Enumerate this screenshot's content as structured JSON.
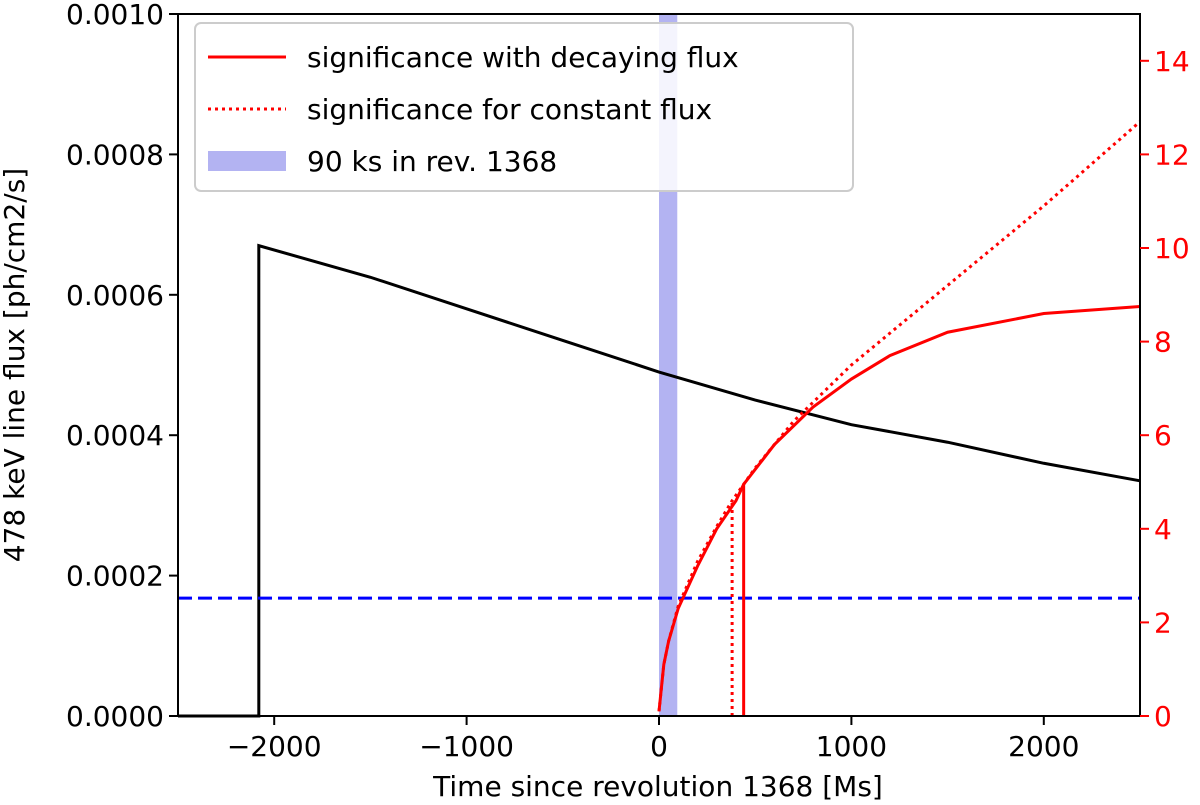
{
  "chart_data": {
    "type": "line",
    "xlabel": "Time since revolution 1368 [Ms]",
    "ylabel": "478 keV line flux [ph/cm2/s]",
    "xlim": [
      -2500,
      2500
    ],
    "ylim": [
      0,
      0.001
    ],
    "y2lim": [
      0,
      15
    ],
    "x_ticks": [
      -2000,
      -1000,
      0,
      1000,
      2000
    ],
    "x_tick_labels": [
      "−2000",
      "−1000",
      "0",
      "1000",
      "2000"
    ],
    "y_ticks": [
      0,
      0.0002,
      0.0004,
      0.0006,
      0.0008,
      0.001
    ],
    "y_tick_labels": [
      "0.0000",
      "0.0002",
      "0.0004",
      "0.0006",
      "0.0008",
      "0.0010"
    ],
    "y2_ticks": [
      0,
      2,
      4,
      6,
      8,
      10,
      12,
      14
    ],
    "y2_tick_labels": [
      "0",
      "2",
      "4",
      "6",
      "8",
      "10",
      "12",
      "14"
    ],
    "flux_series": {
      "color": "#000000",
      "points": [
        [
          -2500,
          0
        ],
        [
          -2080,
          0
        ],
        [
          -2080,
          0.00067
        ],
        [
          -1500,
          0.000625
        ],
        [
          -1000,
          0.00058
        ],
        [
          -500,
          0.000535
        ],
        [
          0,
          0.00049
        ],
        [
          500,
          0.00045
        ],
        [
          1000,
          0.000415
        ],
        [
          1500,
          0.00039
        ],
        [
          2000,
          0.00036
        ],
        [
          2500,
          0.000335
        ]
      ]
    },
    "threshold": {
      "y": 0.000168,
      "color": "#0000ff",
      "style": "dashed"
    },
    "significance_decaying": {
      "name": "significance with decaying flux",
      "color": "#ff0000",
      "style": "solid",
      "points": [
        [
          0,
          0.1
        ],
        [
          25,
          1.1
        ],
        [
          50,
          1.6
        ],
        [
          100,
          2.3
        ],
        [
          200,
          3.2
        ],
        [
          300,
          4.0
        ],
        [
          400,
          4.6
        ],
        [
          440,
          4.95
        ],
        [
          600,
          5.8
        ],
        [
          800,
          6.6
        ],
        [
          1000,
          7.2
        ],
        [
          1200,
          7.7
        ],
        [
          1500,
          8.2
        ],
        [
          2000,
          8.6
        ],
        [
          2500,
          8.75
        ]
      ]
    },
    "significance_constant": {
      "name": "significance for constant flux",
      "color": "#ff0000",
      "style": "dotted",
      "points": [
        [
          0,
          0.1
        ],
        [
          25,
          1.1
        ],
        [
          50,
          1.6
        ],
        [
          100,
          2.35
        ],
        [
          200,
          3.3
        ],
        [
          300,
          4.05
        ],
        [
          380,
          4.6
        ],
        [
          500,
          5.3
        ],
        [
          700,
          6.3
        ],
        [
          1000,
          7.5
        ],
        [
          1500,
          9.2
        ],
        [
          2000,
          10.9
        ],
        [
          2500,
          12.7
        ]
      ]
    },
    "vlines": [
      {
        "x": 440,
        "top": 4.95,
        "style": "solid",
        "color": "#ff0000"
      },
      {
        "x": 380,
        "top": 4.6,
        "style": "dotted",
        "color": "#ff0000"
      }
    ],
    "band": {
      "name": "90 ks in rev. 1368",
      "x0": 0,
      "x1": 95,
      "color": "#b3b3f2"
    },
    "legend": {
      "position": "upper-left",
      "entries": [
        {
          "label": "significance with decaying flux",
          "kind": "solid",
          "color": "#ff0000"
        },
        {
          "label": "significance for constant flux",
          "kind": "dotted",
          "color": "#ff0000"
        },
        {
          "label": "90 ks in rev. 1368",
          "kind": "patch",
          "color": "#b3b3f2"
        }
      ]
    },
    "right_axis_color": "#ff0000"
  }
}
